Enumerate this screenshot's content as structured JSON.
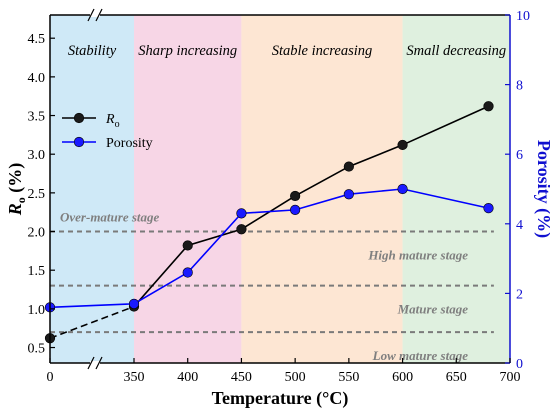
{
  "chart_data": {
    "type": "line",
    "xlabel": "Temperature (°C)",
    "ylabel_left": {
      "main": "R",
      "sub": "o",
      "suffix": " (%)"
    },
    "ylabel_right": "Porosity (%)",
    "xlim": [
      0,
      700
    ],
    "x_break": [
      0,
      350
    ],
    "x_ticks": [
      0,
      350,
      400,
      450,
      500,
      550,
      600,
      650,
      700
    ],
    "ylim_left": [
      0.3,
      4.8
    ],
    "yticks_left": [
      0.5,
      1.0,
      1.5,
      2.0,
      2.5,
      3.0,
      3.5,
      4.0,
      4.5
    ],
    "ylim_right": [
      0,
      10
    ],
    "yticks_right": [
      0,
      2,
      4,
      6,
      8,
      10
    ],
    "regions": [
      {
        "label": "Stability",
        "x": [
          0,
          350
        ],
        "color": "#cfe9f7"
      },
      {
        "label": "Sharp increasing",
        "x": [
          350,
          450
        ],
        "color": "#f7d6e6"
      },
      {
        "label": "Stable increasing",
        "x": [
          450,
          600
        ],
        "color": "#fde6d3"
      },
      {
        "label": "Small decreasing",
        "x": [
          600,
          700
        ],
        "color": "#dff0df"
      }
    ],
    "reference_lines": [
      {
        "y": 2.0,
        "label": "Over-mature stage",
        "label_pos": "above-left"
      },
      {
        "y": 2.0,
        "label": "High mature stage",
        "label_pos": "below-right"
      },
      {
        "y": 1.3,
        "label": "Mature stage",
        "label_pos": "below-right"
      },
      {
        "y": 0.7,
        "label": "Low mature stage",
        "label_pos": "below-right"
      }
    ],
    "series": [
      {
        "name": "R",
        "name_sub": "o",
        "axis": "left",
        "color": "#000000",
        "marker_fill": "#1a1a1a",
        "x": [
          0,
          350,
          400,
          450,
          500,
          550,
          600,
          680
        ],
        "y": [
          0.62,
          1.03,
          1.82,
          2.03,
          2.46,
          2.84,
          3.12,
          3.62
        ]
      },
      {
        "name": "Porosity",
        "axis": "right",
        "color": "#0000ff",
        "marker_fill": "#1a1aff",
        "x": [
          0,
          350,
          400,
          450,
          500,
          550,
          600,
          680
        ],
        "y": [
          1.6,
          1.7,
          2.6,
          4.3,
          4.4,
          4.85,
          5.0,
          4.45
        ]
      }
    ],
    "legend": "upper-left"
  }
}
